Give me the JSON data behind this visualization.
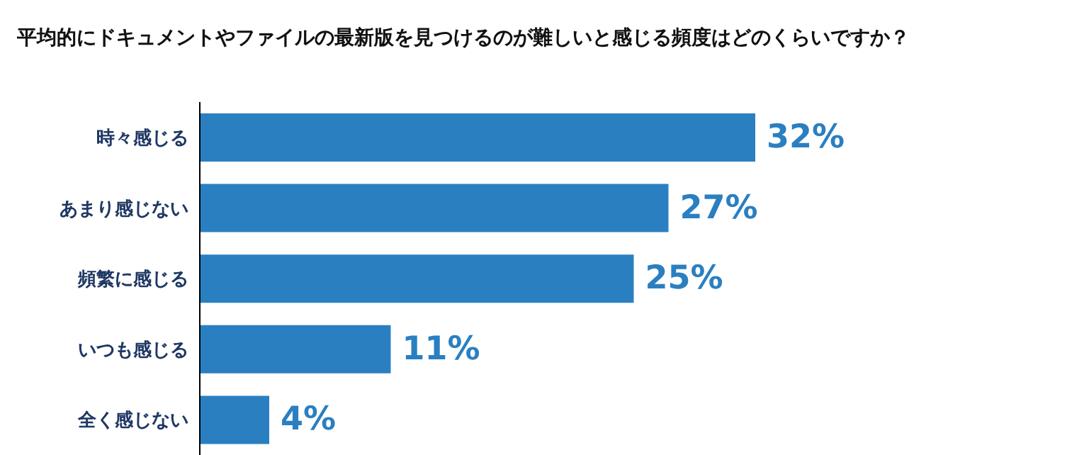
{
  "chart_data": {
    "type": "bar",
    "orientation": "horizontal",
    "title": "平均的にドキュメントやファイルの最新版を見つけるのが難しいと感じる頻度はどのくらいですか？",
    "categories": [
      "時々感じる",
      "あまり感じない",
      "頻繁に感じる",
      "いつも感じる",
      "全く感じない"
    ],
    "values": [
      32,
      27,
      25,
      11,
      4
    ],
    "value_labels": [
      "32%",
      "27%",
      "25%",
      "11%",
      "4%"
    ],
    "color": "#2a7fc1"
  }
}
